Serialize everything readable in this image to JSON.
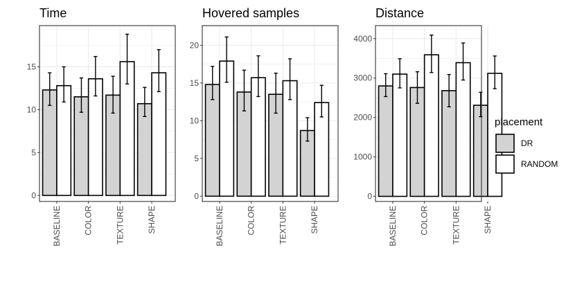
{
  "chart_data": [
    {
      "type": "bar",
      "title": "Time",
      "categories": [
        "BASELINE",
        "COLOR",
        "TEXTURE",
        "SHAPE"
      ],
      "yticks": [
        0,
        5,
        10,
        15
      ],
      "ylim": [
        -0.7,
        19.8
      ],
      "series": [
        {
          "name": "DR",
          "values": [
            12.3,
            11.5,
            11.7,
            10.7
          ],
          "err_low": [
            10.5,
            9.7,
            9.6,
            9.2
          ],
          "err_high": [
            14.3,
            13.7,
            13.9,
            12.6
          ]
        },
        {
          "name": "RANDOM",
          "values": [
            12.8,
            13.6,
            15.6,
            14.3
          ],
          "err_low": [
            10.9,
            11.6,
            13.0,
            12.1
          ],
          "err_high": [
            15.0,
            16.2,
            18.8,
            17.0
          ]
        }
      ]
    },
    {
      "type": "bar",
      "title": "Hovered samples",
      "categories": [
        "BASELINE",
        "COLOR",
        "TEXTURE",
        "SHAPE"
      ],
      "yticks": [
        0,
        5,
        10,
        15,
        20
      ],
      "ylim": [
        -0.7,
        22.6
      ],
      "series": [
        {
          "name": "DR",
          "values": [
            14.8,
            13.8,
            13.5,
            8.7
          ],
          "err_low": [
            12.8,
            11.3,
            11.0,
            7.3
          ],
          "err_high": [
            17.2,
            16.7,
            16.3,
            10.4
          ]
        },
        {
          "name": "RANDOM",
          "values": [
            17.9,
            15.7,
            15.3,
            12.4
          ],
          "err_low": [
            15.1,
            13.2,
            12.8,
            10.5
          ],
          "err_high": [
            21.1,
            18.6,
            18.2,
            14.7
          ]
        }
      ]
    },
    {
      "type": "bar",
      "title": "Distance",
      "categories": [
        "BASELINE",
        "COLOR",
        "TEXTURE",
        "SHAPE"
      ],
      "yticks": [
        0,
        1000,
        2000,
        3000,
        4000
      ],
      "ylim": [
        -130,
        4330
      ],
      "series": [
        {
          "name": "DR",
          "values": [
            2800,
            2760,
            2680,
            2310
          ],
          "err_low": [
            2530,
            2360,
            2270,
            2020
          ],
          "err_high": [
            3110,
            3160,
            3090,
            2640
          ]
        },
        {
          "name": "RANDOM",
          "values": [
            3100,
            3590,
            3390,
            3120
          ],
          "err_low": [
            2750,
            3140,
            2950,
            2730
          ],
          "err_high": [
            3490,
            4090,
            3890,
            3560
          ]
        }
      ]
    }
  ],
  "legend": {
    "title": "placement",
    "items": [
      {
        "label": "DR",
        "color": "#d3d3d3"
      },
      {
        "label": "RANDOM",
        "color": "#ffffff"
      }
    ]
  },
  "colors": {
    "panel_bg": "#ffffff",
    "grid": "#ebebeb",
    "border": "#333333",
    "bar_stroke": "#000000"
  }
}
